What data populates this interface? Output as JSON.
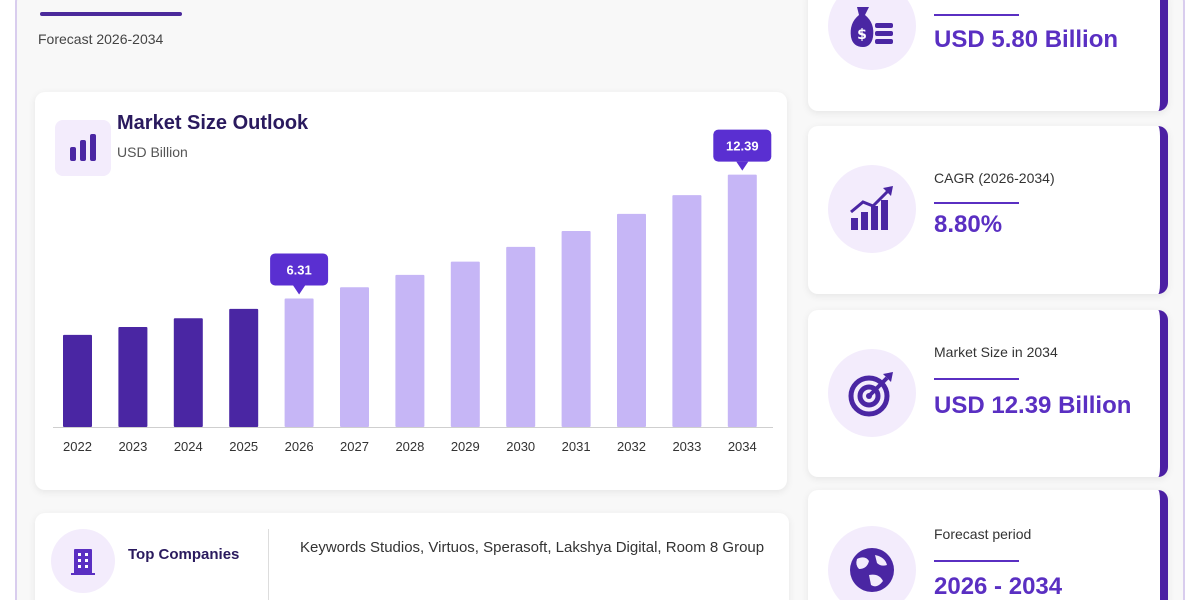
{
  "header": {
    "subtitle": "Forecast 2026-2034"
  },
  "chart_card": {
    "title": "Market Size Outlook",
    "unit": "USD Billion",
    "icon": "bar-chart-icon"
  },
  "chart_data": {
    "type": "bar",
    "title": "Market Size Outlook",
    "ylabel": "USD Billion",
    "categories": [
      "2022",
      "2023",
      "2024",
      "2025",
      "2026",
      "2027",
      "2028",
      "2029",
      "2030",
      "2031",
      "2032",
      "2033",
      "2034"
    ],
    "values": [
      4.52,
      4.91,
      5.34,
      5.8,
      6.31,
      6.86,
      7.47,
      8.12,
      8.84,
      9.62,
      10.46,
      11.38,
      12.39
    ],
    "ylim": [
      0,
      13.5
    ],
    "highlighted": [
      {
        "category": "2026",
        "label": "6.31"
      },
      {
        "category": "2034",
        "label": "12.39"
      }
    ],
    "historical_through": "2025",
    "colors": {
      "historical": "#4a26a3",
      "forecast": "#c6b6f6",
      "callout": "#5a2fd1"
    },
    "grid": false,
    "legend": "none"
  },
  "companies": {
    "label": "Top Companies",
    "list": "Keywords Studios, Virtuos, Sperasoft, Lakshya Digital, Room 8 Group",
    "icon": "building-icon"
  },
  "stats": [
    {
      "label": "",
      "value": "USD 5.80 Billion",
      "icon": "money-bag-icon"
    },
    {
      "label": "CAGR (2026-2034)",
      "value": "8.80%",
      "icon": "growth-chart-icon"
    },
    {
      "label": "Market Size in 2034",
      "value": "USD 12.39 Billion",
      "icon": "target-icon"
    },
    {
      "label": "Forecast period",
      "value": "2026 - 2034",
      "icon": "globe-icon"
    }
  ],
  "colors": {
    "accent": "#5a2fc2",
    "dark": "#2a1a5e",
    "icon_bg": "#f3ecfc"
  }
}
